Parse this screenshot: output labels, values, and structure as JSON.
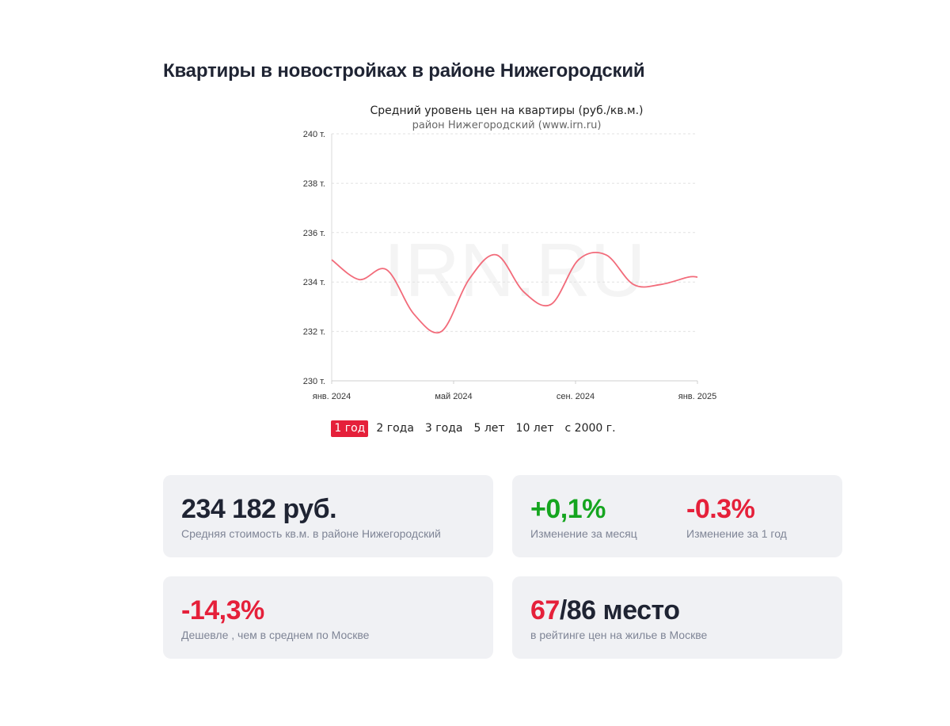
{
  "page": {
    "title": "Квартиры в новостройках в районе Нижегородский"
  },
  "chart_data": {
    "type": "line",
    "title": "Средний уровень цен на квартиры (руб./кв.м.)",
    "subtitle": "район Нижегородский (www.irn.ru)",
    "watermark": "IRN.RU",
    "y_ticks": [
      "240 т.",
      "238 т.",
      "236 т.",
      "234 т.",
      "232 т.",
      "230 т."
    ],
    "ylim": [
      230000,
      240000
    ],
    "x_ticks": [
      {
        "label": "янв. 2024",
        "m": 0
      },
      {
        "label": "май 2024",
        "m": 4
      },
      {
        "label": "сен. 2024",
        "m": 8
      },
      {
        "label": "янв. 2025",
        "m": 12
      }
    ],
    "x_unit": "months from янв. 2024",
    "grid": true,
    "color": "#f26b7a",
    "series": [
      {
        "name": "",
        "x": [
          0,
          0.9,
          1.8,
          2.7,
          3.6,
          4.5,
          5.4,
          6.3,
          7.2,
          8.1,
          9.0,
          9.9,
          10.8,
          11.7,
          12.0
        ],
        "y": [
          234900,
          234100,
          234500,
          232700,
          232000,
          234100,
          235100,
          233600,
          233100,
          234900,
          235100,
          233900,
          233900,
          234200,
          234200
        ]
      }
    ]
  },
  "periods": {
    "items": [
      "1 год",
      "2 года",
      "3 года",
      "5 лет",
      "10 лет",
      "с 2000 г."
    ],
    "active_index": 0
  },
  "stats": {
    "avg_price": {
      "value": "234 182 руб.",
      "caption": "Средняя стоимость кв.м. в районе Нижегородский"
    },
    "month_change": {
      "value": "+0,1%",
      "caption": "Изменение за месяц",
      "color": "#15a51f"
    },
    "year_change": {
      "value": "-0.3%",
      "caption": "Изменение за 1 год",
      "color": "#e5203a"
    },
    "vs_moscow": {
      "value": "-14,3%",
      "caption": "Дешевле , чем в среднем по Москве",
      "color": "#e5203a"
    },
    "rank": {
      "place": "67",
      "total": "/86 место",
      "caption": "в рейтинге цен на жилье в Москве"
    }
  }
}
